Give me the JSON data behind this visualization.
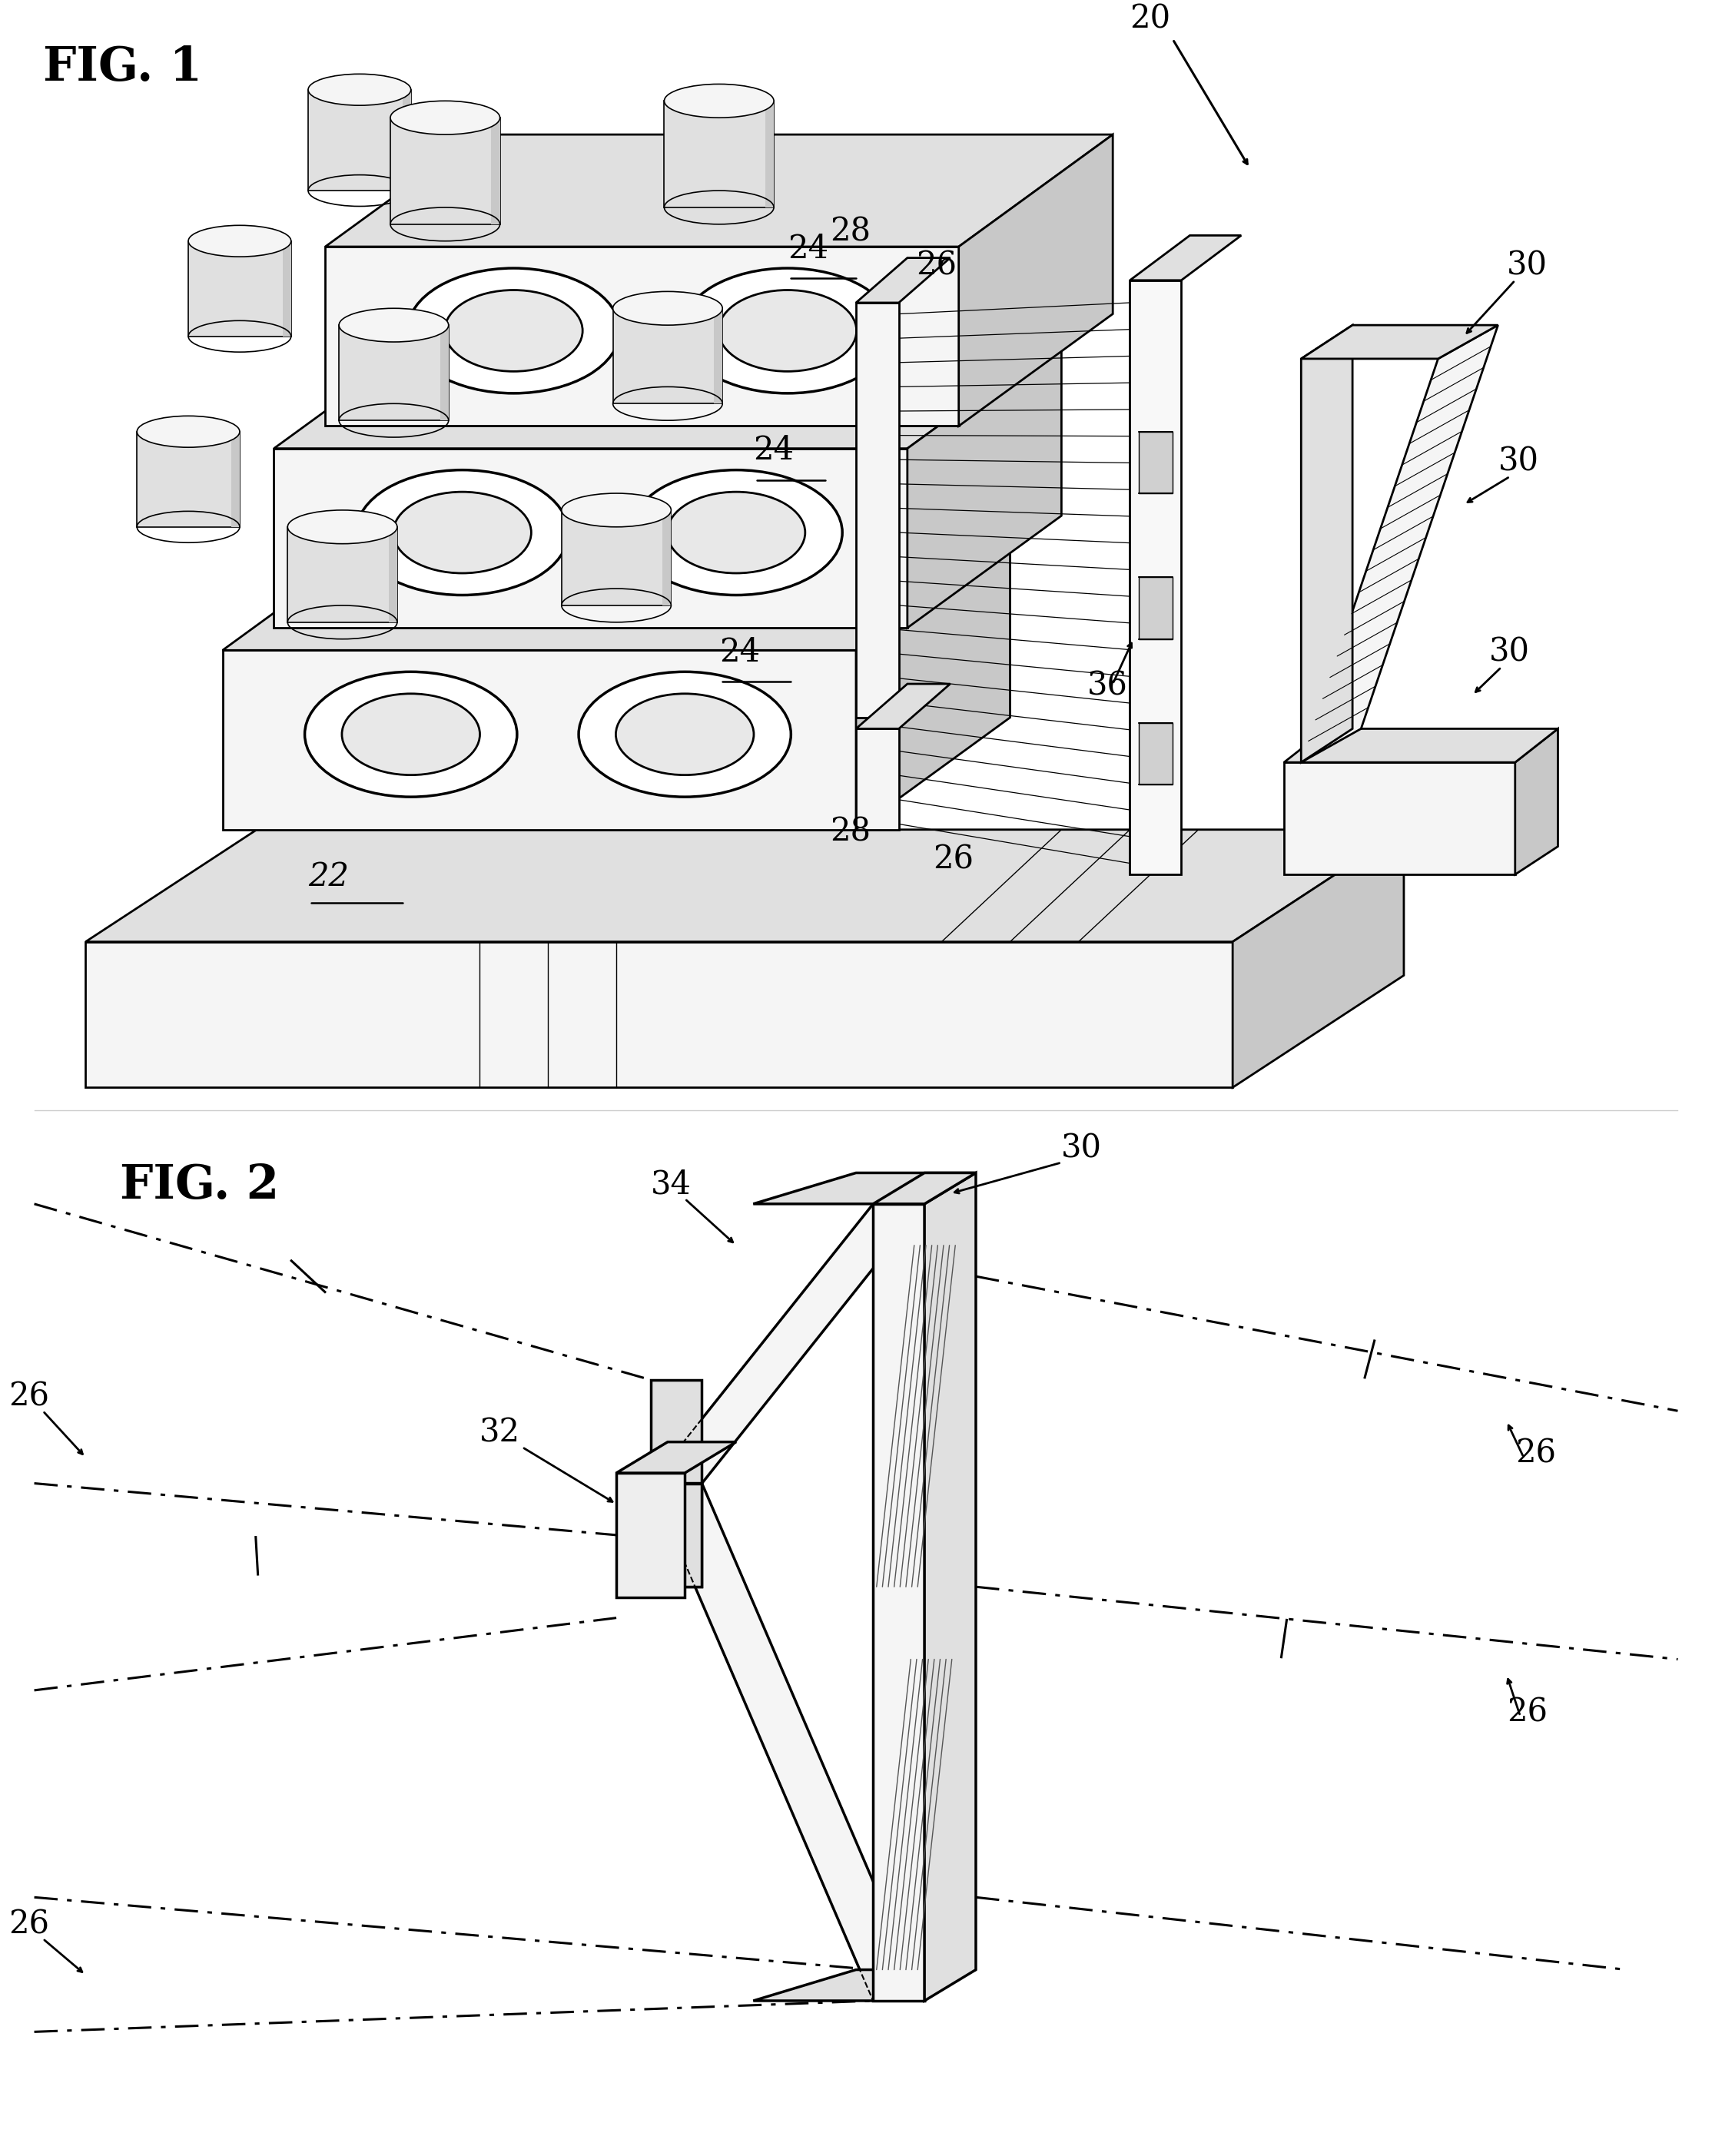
{
  "bg_color": "#ffffff",
  "lw_main": 2.0,
  "lw_thin": 1.2,
  "lw_thick": 2.5,
  "fig1_label": "FIG. 1",
  "fig2_label": "FIG. 2",
  "face_light": "#f5f5f5",
  "face_mid": "#e0e0e0",
  "face_dark": "#c8c8c8",
  "face_darker": "#b0b0b0"
}
